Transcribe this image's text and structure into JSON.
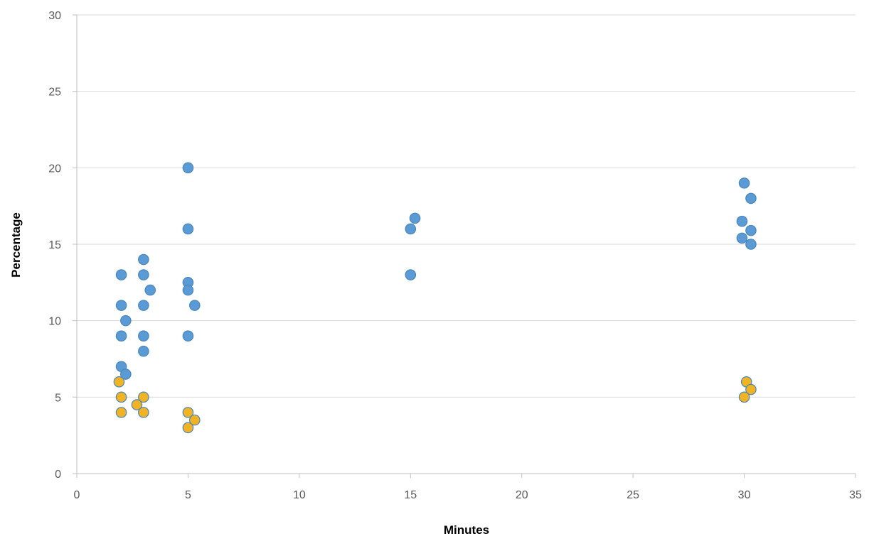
{
  "chart_data": {
    "type": "scatter",
    "xlabel": "Minutes",
    "ylabel": "Percentage",
    "xlim": [
      0,
      35
    ],
    "ylim": [
      0,
      30
    ],
    "x_ticks": [
      0,
      5,
      10,
      15,
      20,
      25,
      30,
      35
    ],
    "y_ticks": [
      0,
      5,
      10,
      15,
      20,
      25,
      30
    ],
    "grid": "horizontal",
    "legend": "none",
    "series": [
      {
        "color": "#5b9bd5",
        "outline": "#4a86bd",
        "points": [
          [
            2,
            13
          ],
          [
            2,
            11
          ],
          [
            2.2,
            10
          ],
          [
            2,
            9
          ],
          [
            2,
            7
          ],
          [
            2.2,
            6.5
          ],
          [
            3,
            14
          ],
          [
            3,
            13
          ],
          [
            3.3,
            12
          ],
          [
            3,
            11
          ],
          [
            3,
            9
          ],
          [
            3,
            8
          ],
          [
            5,
            20
          ],
          [
            5,
            16
          ],
          [
            5,
            12.5
          ],
          [
            5,
            12
          ],
          [
            5.3,
            11
          ],
          [
            5,
            9
          ],
          [
            15,
            16
          ],
          [
            15.2,
            16.7
          ],
          [
            15,
            13
          ],
          [
            30,
            19
          ],
          [
            30.3,
            18
          ],
          [
            29.9,
            16.5
          ],
          [
            30.3,
            15.9
          ],
          [
            29.9,
            15.4
          ],
          [
            30.3,
            15
          ]
        ]
      },
      {
        "color": "#f0b323",
        "outline": "#4a86bd",
        "points": [
          [
            1.9,
            6
          ],
          [
            2,
            5
          ],
          [
            2,
            4
          ],
          [
            2.7,
            4.5
          ],
          [
            3,
            5
          ],
          [
            3,
            4
          ],
          [
            5,
            4
          ],
          [
            5.3,
            3.5
          ],
          [
            5,
            3
          ],
          [
            30.1,
            6
          ],
          [
            30.3,
            5.5
          ],
          [
            30,
            5
          ]
        ]
      }
    ]
  }
}
